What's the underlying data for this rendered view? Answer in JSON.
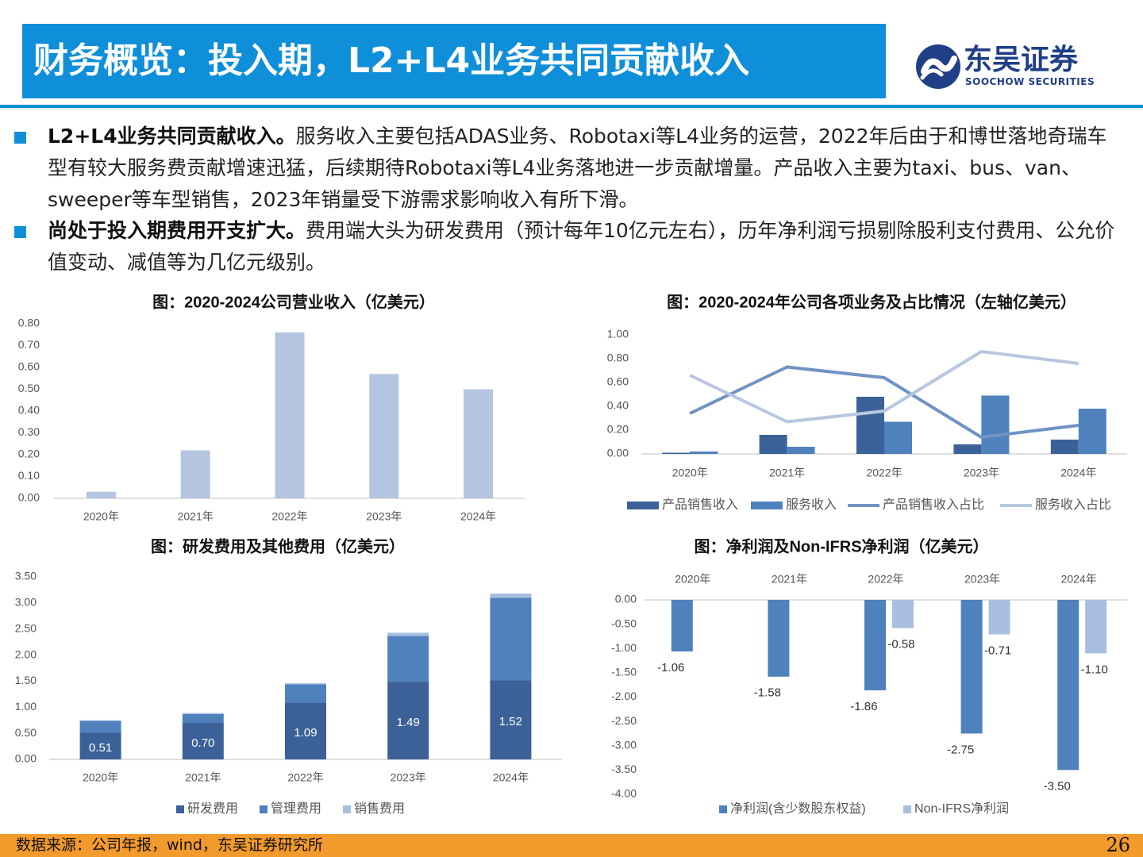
{
  "header": {
    "title": "财务概览：投入期，L2+L4业务共同贡献收入",
    "logo_cn": "东吴证券",
    "logo_en": "SOOCHOW SECURITIES"
  },
  "bullets": [
    {
      "lead": "L2+L4业务共同贡献收入。",
      "body": "服务收入主要包括ADAS业务、Robotaxi等L4业务的运营，2022年后由于和博世落地奇瑞车型有较大服务费贡献增速迅猛，后续期待Robotaxi等L4业务落地进一步贡献增量。产品收入主要为taxi、bus、van、sweeper等车型销售，2023年销量受下游需求影响收入有所下滑。"
    },
    {
      "lead": "尚处于投入期费用开支扩大。",
      "body": "费用端大头为研发费用（预计每年10亿元左右），历年净利润亏损剔除股利支付费用、公允价值变动、减值等为几亿元级别。"
    }
  ],
  "footer": {
    "source": "数据来源：公司年报，wind，东吴证券研究所",
    "page": "26"
  },
  "colors": {
    "accent": "#0f8fd9",
    "footer": "#f39a2c",
    "dark_bar": "#3b6198",
    "mid_bar": "#4f81bd",
    "light_bar": "#b4c5df",
    "pale_bar": "#a9bfe0"
  },
  "chart_data": [
    {
      "type": "bar",
      "title": "图：2020-2024公司营业收入（亿美元）",
      "categories": [
        "2020年",
        "2021年",
        "2022年",
        "2023年",
        "2024年"
      ],
      "values": [
        0.03,
        0.22,
        0.76,
        0.57,
        0.5
      ],
      "ylim": [
        0,
        0.8
      ],
      "yticks": [
        "0.00",
        "0.10",
        "0.20",
        "0.30",
        "0.40",
        "0.50",
        "0.60",
        "0.70",
        "0.80"
      ],
      "xlabel": "",
      "ylabel": ""
    },
    {
      "type": "bar+line",
      "title": "图：2020-2024年公司各项业务及占比情况（左轴亿美元）",
      "categories": [
        "2020年",
        "2021年",
        "2022年",
        "2023年",
        "2024年"
      ],
      "ylim": [
        0,
        1.0
      ],
      "yticks": [
        "0.00",
        "0.20",
        "0.40",
        "0.60",
        "0.80",
        "1.00"
      ],
      "series": [
        {
          "name": "产品销售收入",
          "kind": "bar",
          "values": [
            0.01,
            0.16,
            0.48,
            0.08,
            0.12
          ]
        },
        {
          "name": "服务收入",
          "kind": "bar",
          "values": [
            0.02,
            0.06,
            0.27,
            0.49,
            0.38
          ]
        },
        {
          "name": "产品销售收入占比",
          "kind": "line",
          "values": [
            0.34,
            0.73,
            0.64,
            0.14,
            0.24
          ]
        },
        {
          "name": "服务收入占比",
          "kind": "line",
          "values": [
            0.66,
            0.27,
            0.36,
            0.86,
            0.76
          ]
        }
      ]
    },
    {
      "type": "stacked-bar",
      "title": "图：研发费用及其他费用（亿美元）",
      "categories": [
        "2020年",
        "2021年",
        "2022年",
        "2023年",
        "2024年"
      ],
      "ylim": [
        0,
        3.5
      ],
      "yticks": [
        "0.00",
        "0.50",
        "1.00",
        "1.50",
        "2.00",
        "2.50",
        "3.00",
        "3.50"
      ],
      "series": [
        {
          "name": "研发费用",
          "values": [
            0.51,
            0.7,
            1.09,
            1.49,
            1.52
          ],
          "labels": [
            "0.51",
            "0.70",
            "1.09",
            "1.49",
            "1.52"
          ]
        },
        {
          "name": "管理费用",
          "values": [
            0.23,
            0.17,
            0.35,
            0.88,
            1.58
          ]
        },
        {
          "name": "销售费用",
          "values": [
            0.01,
            0.02,
            0.02,
            0.06,
            0.08
          ]
        }
      ]
    },
    {
      "type": "bar",
      "title": "图：净利润及Non-IFRS净利润（亿美元）",
      "categories": [
        "2020年",
        "2021年",
        "2022年",
        "2023年",
        "2024年"
      ],
      "ylim": [
        -4.0,
        0.0
      ],
      "yticks": [
        "0.00",
        "-0.50",
        "-1.00",
        "-1.50",
        "-2.00",
        "-2.50",
        "-3.00",
        "-3.50",
        "-4.00"
      ],
      "series": [
        {
          "name": "净利润(含少数股东权益)",
          "values": [
            -1.06,
            -1.58,
            -1.86,
            -2.75,
            -3.5
          ],
          "labels": [
            "-1.06",
            "-1.58",
            "-1.86",
            "-2.75",
            "-3.50"
          ]
        },
        {
          "name": "Non-IFRS净利润",
          "values": [
            null,
            null,
            -0.58,
            -0.71,
            -1.1
          ],
          "labels": [
            "",
            "",
            "-0.58",
            "-0.71",
            "-1.10"
          ]
        }
      ]
    }
  ]
}
